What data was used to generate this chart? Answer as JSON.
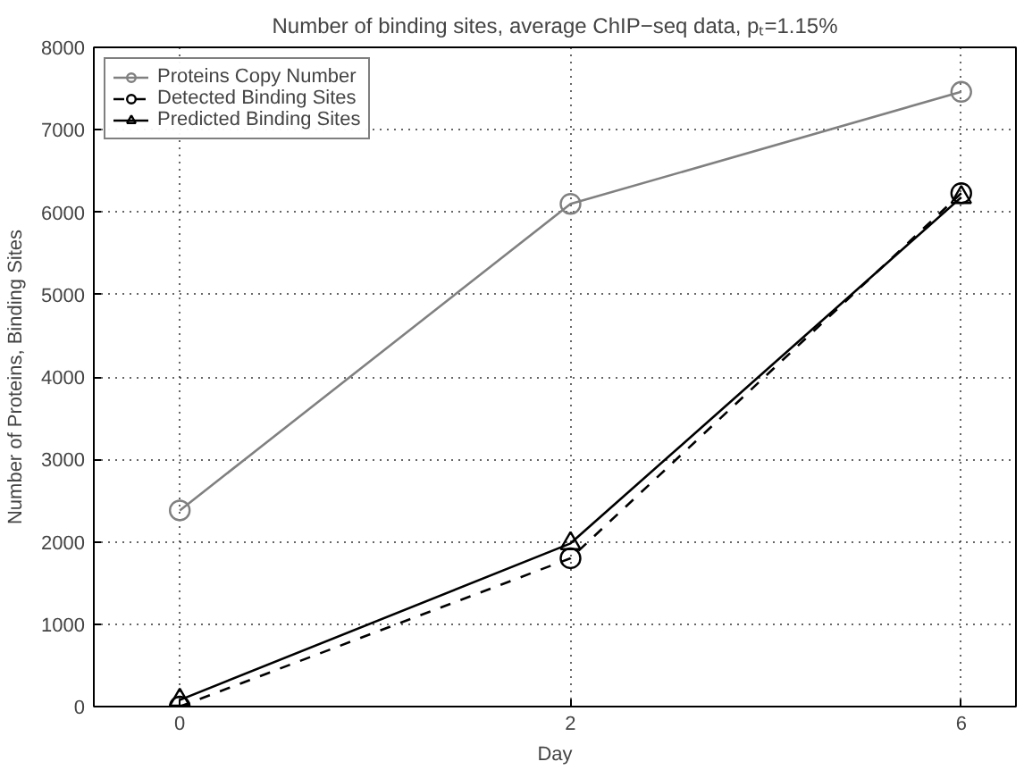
{
  "chart_data": {
    "type": "line",
    "title": "Number of binding sites, average ChIP−seq data, pₜ=1.15%",
    "xlabel": "Day",
    "ylabel": "Number of Proteins, Binding Sites",
    "categories": [
      "0",
      "2",
      "6"
    ],
    "series": [
      {
        "name": "Proteins Copy Number",
        "color": "#808080",
        "values": [
          2380,
          6100,
          7460
        ],
        "marker": "circle",
        "line_style": "solid"
      },
      {
        "name": "Detected Binding Sites",
        "color": "#000000",
        "values": [
          0,
          1800,
          6230
        ],
        "marker": "circle",
        "line_style": "dashed"
      },
      {
        "name": "Predicted Binding Sites",
        "color": "#000000",
        "values": [
          80,
          1980,
          6180
        ],
        "marker": "triangle",
        "line_style": "solid"
      }
    ],
    "ylim": [
      0,
      8000
    ],
    "yticks": [
      0,
      1000,
      2000,
      3000,
      4000,
      5000,
      6000,
      7000,
      8000
    ],
    "grid": true,
    "legend": "top left"
  }
}
